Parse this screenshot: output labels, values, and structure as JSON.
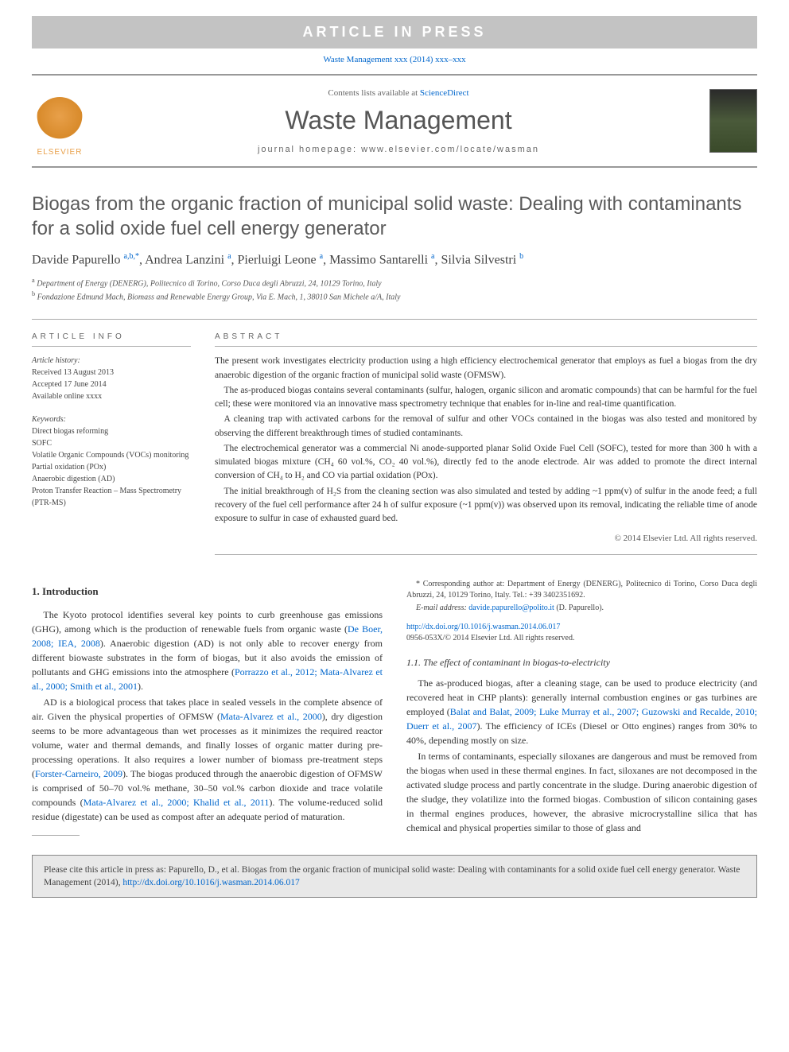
{
  "banner": {
    "text": "ARTICLE IN PRESS"
  },
  "citation_line": "Waste Management xxx (2014) xxx–xxx",
  "header": {
    "elsevier": "ELSEVIER",
    "contents_prefix": "Contents lists available at ",
    "contents_link": "ScienceDirect",
    "journal_title": "Waste Management",
    "homepage_prefix": "journal homepage: ",
    "homepage_url": "www.elsevier.com/locate/wasman"
  },
  "title": "Biogas from the organic fraction of municipal solid waste: Dealing with contaminants for a solid oxide fuel cell energy generator",
  "authors_html": "Davide Papurello <sup>a,b,*</sup>, Andrea Lanzini <sup>a</sup>, Pierluigi Leone <sup>a</sup>, Massimo Santarelli <sup>a</sup>, Silvia Silvestri <sup>b</sup>",
  "affiliations": {
    "a": "Department of Energy (DENERG), Politecnico di Torino, Corso Duca degli Abruzzi, 24, 10129 Torino, Italy",
    "b": "Fondazione Edmund Mach, Biomass and Renewable Energy Group, Via E. Mach, 1, 38010 San Michele a/A, Italy"
  },
  "info": {
    "label": "ARTICLE INFO",
    "history_label": "Article history:",
    "received": "Received 13 August 2013",
    "accepted": "Accepted 17 June 2014",
    "online": "Available online xxxx",
    "keywords_label": "Keywords:",
    "keywords": [
      "Direct biogas reforming",
      "SOFC",
      "Volatile Organic Compounds (VOCs) monitoring",
      "Partial oxidation (POx)",
      "Anaerobic digestion (AD)",
      "Proton Transfer Reaction – Mass Spectrometry (PTR-MS)"
    ]
  },
  "abstract": {
    "label": "ABSTRACT",
    "paragraphs": [
      "The present work investigates electricity production using a high efficiency electrochemical generator that employs as fuel a biogas from the dry anaerobic digestion of the organic fraction of municipal solid waste (OFMSW).",
      "The as-produced biogas contains several contaminants (sulfur, halogen, organic silicon and aromatic compounds) that can be harmful for the fuel cell; these were monitored via an innovative mass spectrometry technique that enables for in-line and real-time quantification.",
      "A cleaning trap with activated carbons for the removal of sulfur and other VOCs contained in the biogas was also tested and monitored by observing the different breakthrough times of studied contaminants.",
      "The electrochemical generator was a commercial Ni anode-supported planar Solid Oxide Fuel Cell (SOFC), tested for more than 300 h with a simulated biogas mixture (CH₄ 60 vol.%, CO₂ 40 vol.%), directly fed to the anode electrode. Air was added to promote the direct internal conversion of CH₄ to H₂ and CO via partial oxidation (POx).",
      "The initial breakthrough of H₂S from the cleaning section was also simulated and tested by adding ~1 ppm(v) of sulfur in the anode feed; a full recovery of the fuel cell performance after 24 h of sulfur exposure (~1 ppm(v)) was observed upon its removal, indicating the reliable time of anode exposure to sulfur in case of exhausted guard bed."
    ],
    "copyright": "© 2014 Elsevier Ltd. All rights reserved."
  },
  "body": {
    "h_intro": "1. Introduction",
    "p1a": "The Kyoto protocol identifies several key points to curb greenhouse gas emissions (GHG), among which is the production of renewable fuels from organic waste (",
    "p1_cite1": "De Boer, 2008; IEA, 2008",
    "p1b": "). Anaerobic digestion (AD) is not only able to recover energy from different biowaste substrates in the form of biogas, but it also avoids the emission of pollutants and GHG emissions into the atmosphere (",
    "p1_cite2": "Porrazzo et al., 2012; Mata-Alvarez et al., 2000; Smith et al., 2001",
    "p1c": ").",
    "p2a": "AD is a biological process that takes place in sealed vessels in the complete absence of air. Given the physical properties of OFMSW (",
    "p2_cite1": "Mata-Alvarez et al., 2000",
    "p2b": "), dry digestion seems to be more advantageous than wet processes as it minimizes the required reactor volume, water and thermal demands, and finally losses of organic matter during pre-processing operations. It also requires a lower number of biomass pre-treatment steps (",
    "p2_cite2": "Forster-Carneiro, 2009",
    "p2c": "). The biogas produced through the anaerobic digestion of OFMSW is comprised of 50–70 vol.% methane, 30–50 vol.% carbon dioxide and trace volatile compounds (",
    "p2_cite3": "Mata-Alvarez et al., 2000; Khalid et al., 2011",
    "p2d": "). The volume-reduced solid residue (digestate) can be used as compost after an adequate period of maturation.",
    "h_11": "1.1. The effect of contaminant in biogas-to-electricity",
    "p3a": "The as-produced biogas, after a cleaning stage, can be used to produce electricity (and recovered heat in CHP plants): generally internal combustion engines or gas turbines are employed (",
    "p3_cite1": "Balat and Balat, 2009; Luke Murray et al., 2007; Guzowski and Recalde, 2010; Duerr et al., 2007",
    "p3b": "). The efficiency of ICEs (Diesel or Otto engines) ranges from 30% to 40%, depending mostly on size.",
    "p4": "In terms of contaminants, especially siloxanes are dangerous and must be removed from the biogas when used in these thermal engines. In fact, siloxanes are not decomposed in the activated sludge process and partly concentrate in the sludge. During anaerobic digestion of the sludge, they volatilize into the formed biogas. Combustion of silicon containing gases in thermal engines produces, however, the abrasive microcrystalline silica that has chemical and physical properties similar to those of glass and"
  },
  "footnote": {
    "corr": "* Corresponding author at: Department of Energy (DENERG), Politecnico di Torino, Corso Duca degli Abruzzi, 24, 10129 Torino, Italy. Tel.: +39 3402351692.",
    "email_label": "E-mail address:",
    "email": "davide.papurello@polito.it",
    "email_suffix": " (D. Papurello)."
  },
  "doi": {
    "url": "http://dx.doi.org/10.1016/j.wasman.2014.06.017",
    "issn": "0956-053X/© 2014 Elsevier Ltd. All rights reserved."
  },
  "citebox": {
    "text": "Please cite this article in press as: Papurello, D., et al. Biogas from the organic fraction of municipal solid waste: Dealing with contaminants for a solid oxide fuel cell energy generator. Waste Management (2014), ",
    "url": "http://dx.doi.org/10.1016/j.wasman.2014.06.017"
  },
  "colors": {
    "link": "#0066cc",
    "banner_bg": "#c3c3c3",
    "banner_fg": "#ffffff",
    "rule": "#999999",
    "text": "#333333",
    "elsevier": "#e8a04a"
  }
}
